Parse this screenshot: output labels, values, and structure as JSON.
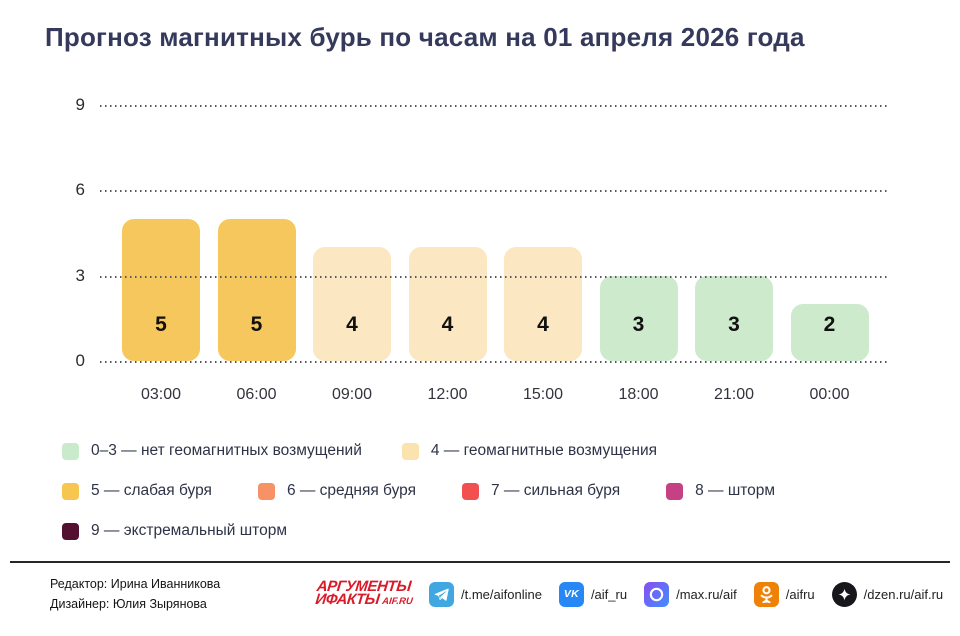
{
  "title": "Прогноз магнитных бурь по часам на 01 апреля 2026 года",
  "chart_data": {
    "type": "bar",
    "title": "Прогноз магнитных бурь по часам на 01 апреля 2026 года",
    "categories": [
      "03:00",
      "06:00",
      "09:00",
      "12:00",
      "15:00",
      "18:00",
      "21:00",
      "00:00"
    ],
    "values": [
      5,
      5,
      4,
      4,
      4,
      3,
      3,
      2
    ],
    "ylim": [
      0,
      9
    ],
    "yticks": [
      0,
      3,
      6,
      9
    ],
    "grid": "horizontal-dotted",
    "legend_position": "bottom",
    "bar_colors_by_value": {
      "2": "#cdeacd",
      "3": "#cdeacd",
      "4": "#fbe8c2",
      "5": "#f6c75c"
    }
  },
  "legend": {
    "rows": [
      [
        {
          "color": "#c9eacb",
          "label": "0–3 — нет геомагнитных возмущений"
        },
        {
          "color": "#fae3ae",
          "label": "4 — геомагнитные возмущения"
        }
      ],
      [
        {
          "color": "#f6c64f",
          "label": "5 — слабая буря"
        },
        {
          "color": "#f79166",
          "label": "6 — средняя буря"
        },
        {
          "color": "#f2504e",
          "label": "7 — сильная буря"
        },
        {
          "color": "#c54183",
          "label": "8 — шторм"
        }
      ],
      [
        {
          "color": "#541031",
          "label": "9 — экстремальный шторм"
        }
      ]
    ]
  },
  "footer": {
    "editor": "Редактор: Ирина Иванникова",
    "designer": "Дизайнер: Юлия Зырянова",
    "logo": {
      "line1": "АРГУМЕНТЫ",
      "line2": "ИФАКТЫ",
      "suffix": "AIF.RU",
      "color": "#da1a28"
    },
    "socials": [
      {
        "icon": "telegram-icon",
        "label": "/t.me/aifonline",
        "color": "#40a7e0"
      },
      {
        "icon": "vk-icon",
        "label": "/aif_ru",
        "color": "#2787f5"
      },
      {
        "icon": "max-icon",
        "label": "/max.ru/aif",
        "color": "#8a4df0",
        "color2": "#3f8efc"
      },
      {
        "icon": "ok-icon",
        "label": "/aifru",
        "color": "#ee8208"
      },
      {
        "icon": "dzen-icon",
        "label": "/dzen.ru/aif.ru",
        "color": "#17171b"
      }
    ]
  }
}
